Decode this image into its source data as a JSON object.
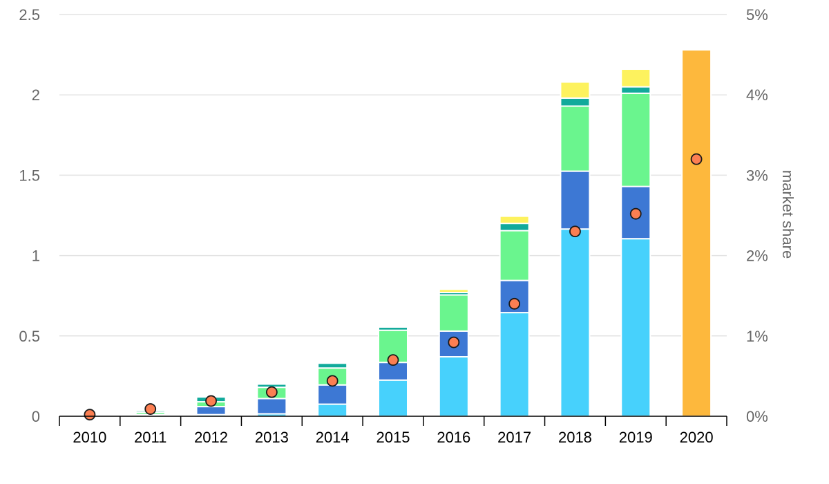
{
  "chart_data": {
    "type": "bar",
    "stacked": true,
    "categories": [
      "2010",
      "2011",
      "2012",
      "2013",
      "2014",
      "2015",
      "2016",
      "2017",
      "2018",
      "2019",
      "2020"
    ],
    "ylim": [
      0,
      2.5
    ],
    "y_ticks": [
      0,
      0.5,
      1,
      1.5,
      2,
      2.5
    ],
    "y_tick_labels": [
      "0",
      "0.5",
      "1",
      "1.5",
      "2",
      "2.5"
    ],
    "y2lim": [
      0,
      5
    ],
    "y2_ticks": [
      0,
      1,
      2,
      3,
      4,
      5
    ],
    "y2_tick_labels": [
      "0%",
      "1%",
      "2%",
      "3%",
      "4%",
      "5%"
    ],
    "y2label": "market share",
    "grid": true,
    "legend": "none",
    "series": [
      {
        "color": "#47d1fc",
        "values": [
          0.0,
          0.005,
          0.01,
          0.015,
          0.075,
          0.225,
          0.37,
          0.645,
          1.165,
          1.105,
          null
        ]
      },
      {
        "color": "#3d78d4",
        "values": [
          0.0,
          0.005,
          0.05,
          0.095,
          0.12,
          0.11,
          0.16,
          0.2,
          0.36,
          0.325,
          null
        ]
      },
      {
        "color": "#6af58e",
        "values": [
          0.0,
          0.015,
          0.03,
          0.07,
          0.105,
          0.2,
          0.225,
          0.31,
          0.405,
          0.58,
          null
        ]
      },
      {
        "color": "#11aa9b",
        "values": [
          0.0,
          0.01,
          0.03,
          0.02,
          0.03,
          0.02,
          0.015,
          0.045,
          0.05,
          0.04,
          null
        ]
      },
      {
        "color": "#fdf25e",
        "values": [
          0.0,
          0.0,
          0.0,
          0.0,
          0.0,
          0.0,
          0.02,
          0.045,
          0.1,
          0.11,
          null
        ]
      },
      {
        "color": "#fdb83d",
        "values": [
          null,
          null,
          null,
          null,
          null,
          null,
          null,
          null,
          null,
          null,
          2.28
        ]
      }
    ],
    "market_share": {
      "axis": "y2",
      "color": "#fc7f52",
      "values_percent": [
        0.02,
        0.09,
        0.19,
        0.3,
        0.44,
        0.7,
        0.92,
        1.4,
        2.3,
        2.52,
        3.2
      ]
    }
  }
}
